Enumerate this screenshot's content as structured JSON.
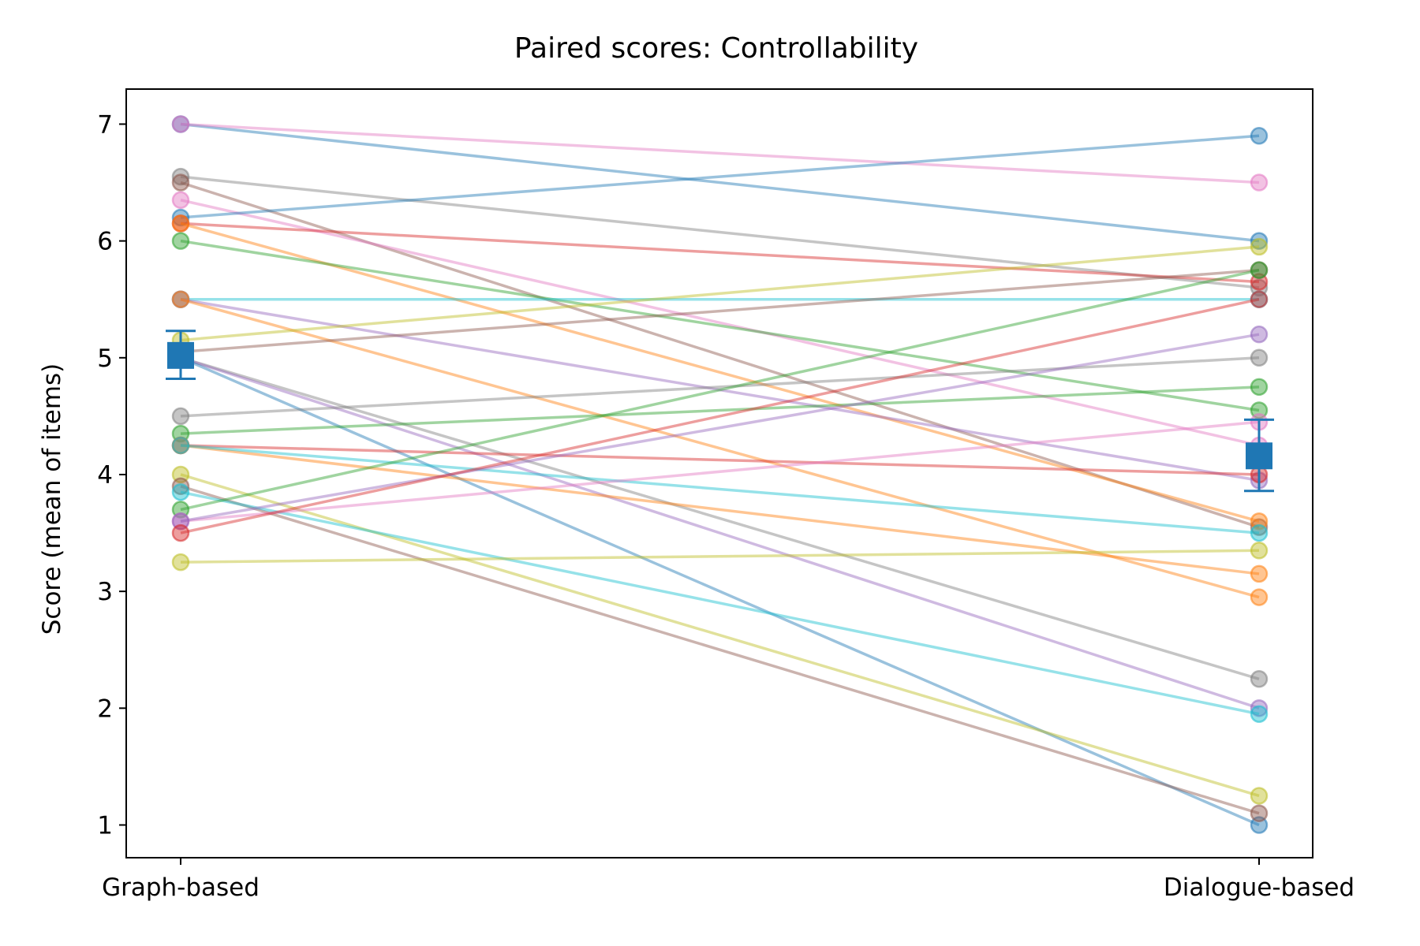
{
  "chart_data": {
    "type": "line",
    "title": "Paired scores: Controllability",
    "xlabel": "",
    "ylabel": "Score (mean of items)",
    "categories": [
      "Graph-based",
      "Dialogue-based"
    ],
    "ylim": [
      0.72,
      7.3
    ],
    "yticks": [
      1,
      2,
      3,
      4,
      5,
      6,
      7
    ],
    "grid": false,
    "legend": "none",
    "pairs": [
      {
        "values": [
          7.0,
          6.0
        ],
        "color": "#1f77b4"
      },
      {
        "values": [
          7.0,
          6.5
        ],
        "color": "#e377c2"
      },
      {
        "values": [
          6.55,
          5.6
        ],
        "color": "#7f7f7f"
      },
      {
        "values": [
          6.5,
          3.55
        ],
        "color": "#8c564b"
      },
      {
        "values": [
          6.35,
          4.25
        ],
        "color": "#e377c2"
      },
      {
        "values": [
          6.2,
          6.9
        ],
        "color": "#1f77b4"
      },
      {
        "values": [
          6.15,
          5.65
        ],
        "color": "#d62728"
      },
      {
        "values": [
          6.15,
          3.6
        ],
        "color": "#ff7f0e"
      },
      {
        "values": [
          6.0,
          4.55
        ],
        "color": "#2ca02c"
      },
      {
        "values": [
          5.5,
          5.5
        ],
        "color": "#17becf"
      },
      {
        "values": [
          5.5,
          3.95
        ],
        "color": "#9467bd"
      },
      {
        "values": [
          5.5,
          2.95
        ],
        "color": "#ff7f0e"
      },
      {
        "values": [
          5.15,
          5.95
        ],
        "color": "#bcbd22"
      },
      {
        "values": [
          5.05,
          5.75
        ],
        "color": "#8c564b"
      },
      {
        "values": [
          5.0,
          2.25
        ],
        "color": "#7f7f7f"
      },
      {
        "values": [
          5.0,
          2.0
        ],
        "color": "#9467bd"
      },
      {
        "values": [
          5.0,
          1.0
        ],
        "color": "#1f77b4"
      },
      {
        "values": [
          4.5,
          5.0
        ],
        "color": "#7f7f7f"
      },
      {
        "values": [
          4.35,
          4.75
        ],
        "color": "#2ca02c"
      },
      {
        "values": [
          4.25,
          4.0
        ],
        "color": "#d62728"
      },
      {
        "values": [
          4.25,
          3.15
        ],
        "color": "#ff7f0e"
      },
      {
        "values": [
          4.25,
          3.5
        ],
        "color": "#17becf"
      },
      {
        "values": [
          4.0,
          1.25
        ],
        "color": "#bcbd22"
      },
      {
        "values": [
          3.9,
          1.1
        ],
        "color": "#8c564b"
      },
      {
        "values": [
          3.85,
          1.95
        ],
        "color": "#17becf"
      },
      {
        "values": [
          3.7,
          5.75
        ],
        "color": "#2ca02c"
      },
      {
        "values": [
          3.6,
          4.45
        ],
        "color": "#e377c2"
      },
      {
        "values": [
          3.6,
          5.2
        ],
        "color": "#9467bd"
      },
      {
        "values": [
          3.5,
          5.5
        ],
        "color": "#d62728"
      },
      {
        "values": [
          3.25,
          3.35
        ],
        "color": "#bcbd22"
      }
    ],
    "summary": {
      "marker": "square",
      "color": "#1f77b4",
      "mean": [
        5.02,
        4.16
      ],
      "error_low": [
        4.82,
        3.86
      ],
      "error_high": [
        5.23,
        4.47
      ]
    }
  }
}
